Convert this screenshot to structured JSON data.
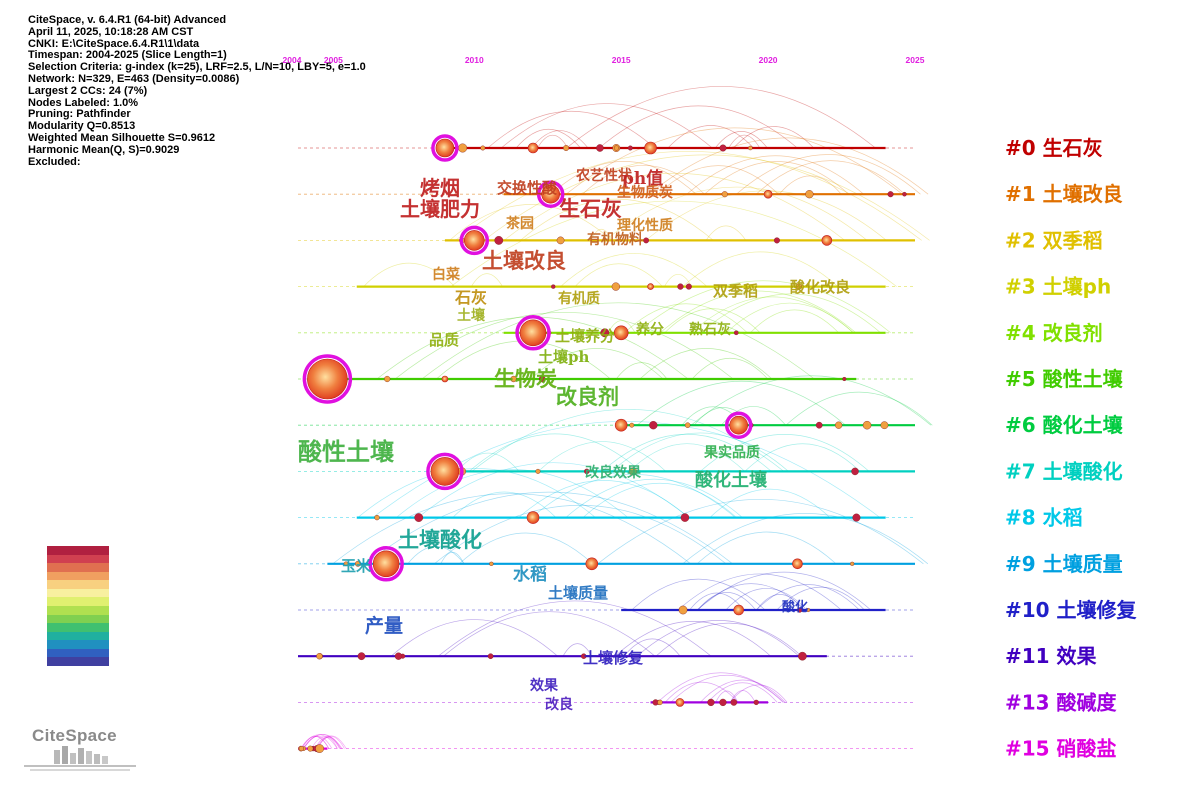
{
  "info": {
    "lines": [
      "CiteSpace, v. 6.4.R1 (64-bit) Advanced",
      "April 11, 2025, 10:18:28 AM CST",
      "CNKI: E:\\CiteSpace.6.4.R1\\1\\data",
      "Timespan: 2004-2025 (Slice Length=1)",
      "Selection Criteria: g-index (k=25), LRF=2.5, L/N=10, LBY=5, e=1.0",
      "Network: N=329, E=463 (Density=0.0086)",
      "Largest 2 CCs: 24 (7%)",
      "Nodes Labeled: 1.0%",
      "Pruning: Pathfinder",
      "Modularity Q=0.8513",
      "Weighted Mean Silhouette S=0.9612",
      "Harmonic Mean(Q, S)=0.9029",
      "Excluded:"
    ]
  },
  "axis": {
    "start_year": 2004,
    "end_year": 2025,
    "year_labels": [
      {
        "text": "2004",
        "year": 2004
      },
      {
        "text": "2005",
        "year": 2005
      },
      {
        "text": "2010",
        "year": 2010
      },
      {
        "text": "2015",
        "year": 2015
      },
      {
        "text": "2020",
        "year": 2020
      },
      {
        "text": "2025",
        "year": 2025
      }
    ],
    "label_color": "#e020e0"
  },
  "clusters": [
    {
      "id": "#0",
      "label": "生石灰",
      "color": "#c00000",
      "start": 2009,
      "end": 2024
    },
    {
      "id": "#1",
      "label": "土壤改良",
      "color": "#e07000",
      "start": 2011,
      "end": 2025
    },
    {
      "id": "#2",
      "label": "双季稻",
      "color": "#e0c000",
      "start": 2009,
      "end": 2025
    },
    {
      "id": "#3",
      "label": "土壤ph",
      "color": "#d0d000",
      "start": 2006,
      "end": 2024
    },
    {
      "id": "#4",
      "label": "改良剂",
      "color": "#80e000",
      "start": 2011,
      "end": 2024
    },
    {
      "id": "#5",
      "label": "酸性土壤",
      "color": "#40cc00",
      "start": 2005,
      "end": 2023
    },
    {
      "id": "#6",
      "label": "酸化土壤",
      "color": "#00cc40",
      "start": 2015,
      "end": 2025
    },
    {
      "id": "#7",
      "label": "土壤酸化",
      "color": "#00d0c0",
      "start": 2009,
      "end": 2025
    },
    {
      "id": "#8",
      "label": "水稻",
      "color": "#00c8e8",
      "start": 2006,
      "end": 2024
    },
    {
      "id": "#9",
      "label": "土壤质量",
      "color": "#00a0e0",
      "start": 2005,
      "end": 2025
    },
    {
      "id": "#10",
      "label": "土壤修复",
      "color": "#2020c8",
      "start": 2015,
      "end": 2024
    },
    {
      "id": "#11",
      "label": "效果",
      "color": "#4000c0",
      "start": 2004,
      "end": 2022
    },
    {
      "id": "#13",
      "label": "酸碱度",
      "color": "#a000e0",
      "start": 2016,
      "end": 2020
    },
    {
      "id": "#15",
      "label": "硝酸盐",
      "color": "#e000e0",
      "start": 2004,
      "end": 2005
    }
  ],
  "legend_colors": [
    "#4040a0",
    "#3060c0",
    "#2090c0",
    "#20b0a0",
    "#40c070",
    "#80d050",
    "#b0e050",
    "#e0f070",
    "#f8f0a0",
    "#f8d080",
    "#f0a060",
    "#e07050",
    "#d04050",
    "#b02040"
  ],
  "node_colors": {
    "core": "#e04020",
    "ring": "#e010e0",
    "glow": "#ffe0a0"
  },
  "keywords": [
    {
      "text": "烤烟",
      "size": 20,
      "color": "#c02020"
    },
    {
      "text": "土壤肥力",
      "size": 20,
      "color": "#c02020"
    },
    {
      "text": "交换性酸",
      "size": 15,
      "color": "#c04020"
    },
    {
      "text": "农艺性状",
      "size": 14,
      "color": "#c04020"
    },
    {
      "text": "ph值",
      "size": 17,
      "color": "#c02020"
    },
    {
      "text": "生物质炭",
      "size": 14,
      "color": "#d06020"
    },
    {
      "text": "生石灰",
      "size": 21,
      "color": "#c02020"
    },
    {
      "text": "茶园",
      "size": 14,
      "color": "#d08020"
    },
    {
      "text": "理化性质",
      "size": 14,
      "color": "#d08020"
    },
    {
      "text": "有机物料",
      "size": 14,
      "color": "#c06020"
    },
    {
      "text": "土壤改良",
      "size": 21,
      "color": "#c04020"
    },
    {
      "text": "白菜",
      "size": 14,
      "color": "#d08020"
    },
    {
      "text": "石灰",
      "size": 16,
      "color": "#c09010"
    },
    {
      "text": "有机质",
      "size": 14,
      "color": "#b0a010"
    },
    {
      "text": "双季稻",
      "size": 15,
      "color": "#b0a010"
    },
    {
      "text": "酸化改良",
      "size": 15,
      "color": "#b0a010"
    },
    {
      "text": "土壤",
      "size": 14,
      "color": "#a0b020"
    },
    {
      "text": "品质",
      "size": 15,
      "color": "#90b010"
    },
    {
      "text": "土壤养分",
      "size": 15,
      "color": "#90b010"
    },
    {
      "text": "养分",
      "size": 14,
      "color": "#90b010"
    },
    {
      "text": "熟石灰",
      "size": 14,
      "color": "#90b010"
    },
    {
      "text": "土壤ph",
      "size": 15,
      "color": "#80b010"
    },
    {
      "text": "生物炭",
      "size": 21,
      "color": "#60b010"
    },
    {
      "text": "改良剂",
      "size": 21,
      "color": "#50b020"
    },
    {
      "text": "酸性土壤",
      "size": 24,
      "color": "#40b040"
    },
    {
      "text": "果实品质",
      "size": 14,
      "color": "#30b050"
    },
    {
      "text": "改良效果",
      "size": 14,
      "color": "#30b070"
    },
    {
      "text": "酸化土壤",
      "size": 18,
      "color": "#20b070"
    },
    {
      "text": "土壤酸化",
      "size": 21,
      "color": "#10a090"
    },
    {
      "text": "玉米",
      "size": 15,
      "color": "#20a0b0"
    },
    {
      "text": "水稻",
      "size": 17,
      "color": "#2090c0"
    },
    {
      "text": "土壤质量",
      "size": 15,
      "color": "#2070c0"
    },
    {
      "text": "产量",
      "size": 19,
      "color": "#2050c0"
    },
    {
      "text": "酸化",
      "size": 13,
      "color": "#2030c0"
    },
    {
      "text": "土壤修复",
      "size": 15,
      "color": "#3020c0"
    },
    {
      "text": "效果",
      "size": 14,
      "color": "#4020c0"
    },
    {
      "text": "改良",
      "size": 14,
      "color": "#5020c0"
    }
  ],
  "logo": {
    "text": "CiteSpace"
  }
}
